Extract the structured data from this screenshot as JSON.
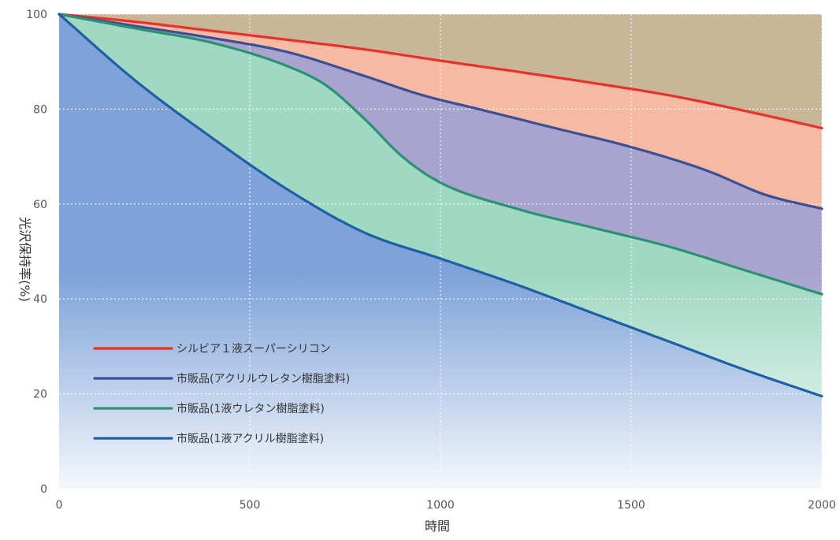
{
  "chart_data": {
    "type": "area",
    "xlabel": "時間",
    "ylabel": "光沢保持率(%)",
    "xlim": [
      0,
      2000
    ],
    "ylim": [
      0,
      100
    ],
    "x_ticks": [
      0,
      500,
      1000,
      1500,
      2000
    ],
    "x_tick_labels": [
      "0",
      "500",
      "1000",
      "1500",
      "2000"
    ],
    "y_ticks": [
      0,
      20,
      40,
      60,
      80,
      100
    ],
    "y_tick_labels": [
      "0",
      "20",
      "40",
      "60",
      "80",
      "100"
    ],
    "grid": true,
    "legend_position": "bottom-left",
    "series": [
      {
        "name": "シルビア１液スーパーシリコン",
        "color": "#e8312a",
        "fill": "#f6b9a3",
        "x": [
          0,
          200,
          400,
          600,
          800,
          1000,
          1200,
          1400,
          1600,
          1800,
          2000
        ],
        "values": [
          100,
          98.4,
          96.5,
          94.6,
          92.6,
          90.2,
          87.9,
          85.5,
          82.9,
          79.6,
          76
        ]
      },
      {
        "name": "市販品(アクリルウレタン樹脂塗料)",
        "color": "#3d4f93",
        "fill": "#a8a3cf",
        "x": [
          0,
          200,
          400,
          600,
          800,
          950,
          1100,
          1300,
          1500,
          1700,
          1850,
          2000
        ],
        "values": [
          100,
          97.5,
          95,
          92,
          87,
          83,
          80,
          76,
          72,
          67,
          62,
          59
        ]
      },
      {
        "name": "市販品(1液ウレタン樹脂塗料)",
        "color": "#2b9271",
        "fill": "#9fd8c3",
        "x": [
          0,
          200,
          400,
          600,
          700,
          800,
          900,
          1000,
          1200,
          1400,
          1600,
          1800,
          2000
        ],
        "values": [
          100,
          97,
          94,
          89,
          85,
          78,
          70,
          64.5,
          59,
          55,
          51,
          46,
          41
        ]
      },
      {
        "name": "市販品(1液アクリル樹脂塗料)",
        "color": "#1f5fa6",
        "fill": "#7fa3d9",
        "x": [
          0,
          200,
          400,
          600,
          800,
          1000,
          1200,
          1400,
          1600,
          1800,
          2000
        ],
        "values": [
          100,
          86,
          74,
          63,
          54,
          48.5,
          43,
          37,
          31,
          25,
          19.5
        ]
      }
    ]
  }
}
